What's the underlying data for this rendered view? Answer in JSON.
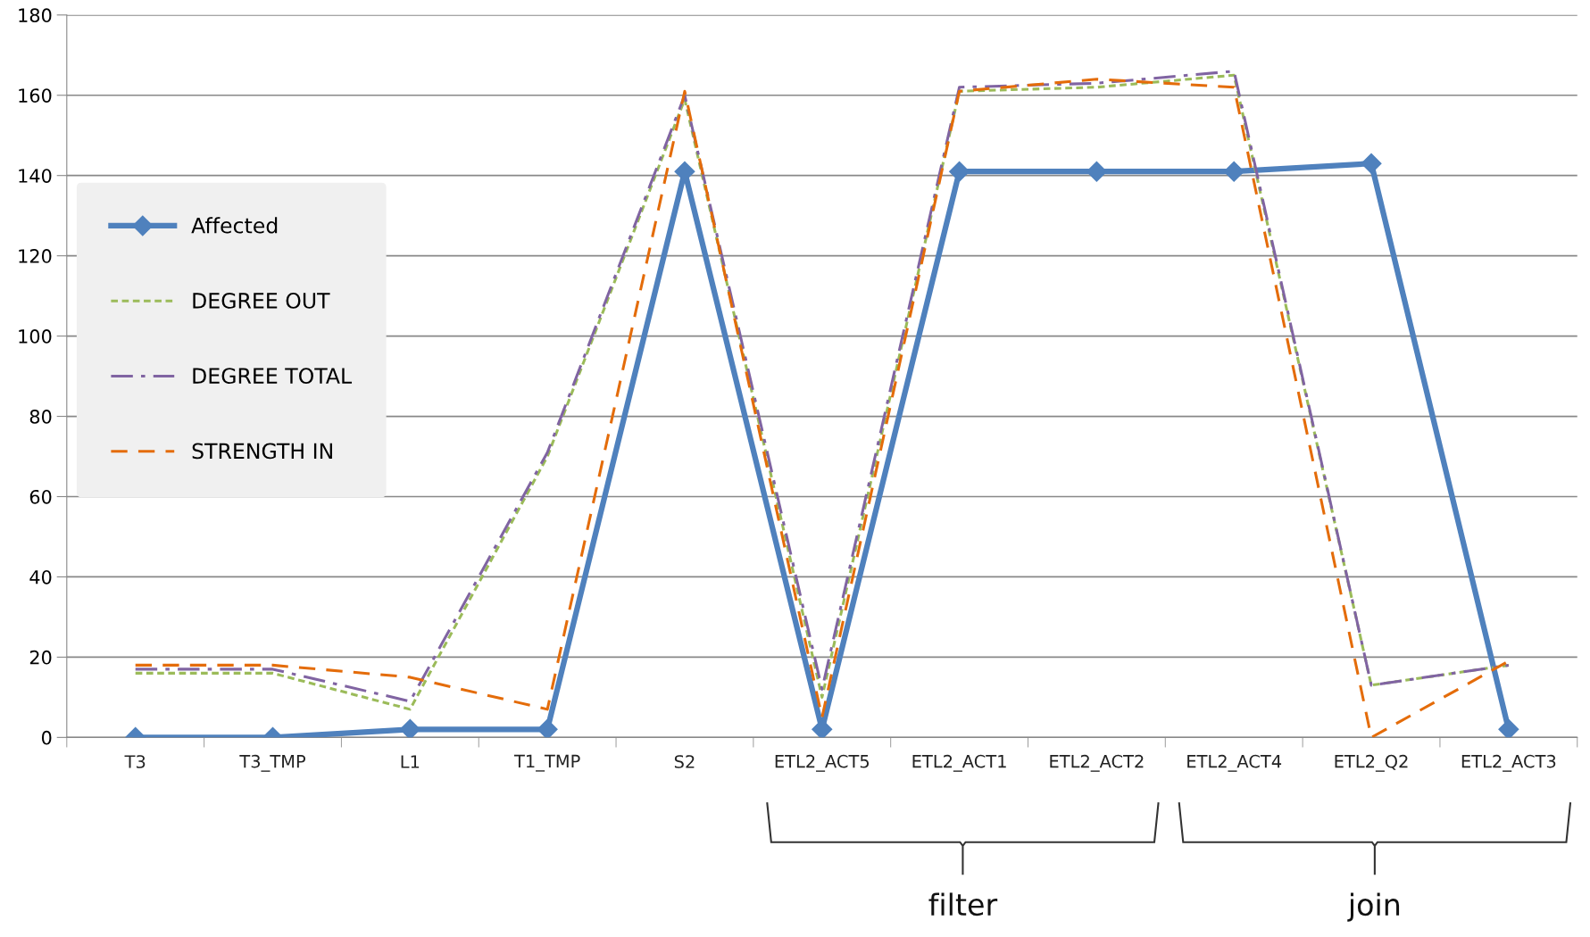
{
  "chart_data": {
    "type": "line",
    "categories": [
      "T3",
      "T3_TMP",
      "L1",
      "T1_TMP",
      "S2",
      "ETL2_ACT5",
      "ETL2_ACT1",
      "ETL2_ACT2",
      "ETL2_ACT4",
      "ETL2_Q2",
      "ETL2_ACT3"
    ],
    "series": [
      {
        "name": "Affected",
        "color": "#4f81bd",
        "marker": "diamond",
        "line_style": "solid",
        "values": [
          0,
          0,
          2,
          2,
          141,
          2,
          141,
          141,
          141,
          143,
          2
        ]
      },
      {
        "name": "DEGREE OUT",
        "color": "#9bbb59",
        "marker": "none",
        "line_style": "dotted",
        "values": [
          16,
          16,
          7,
          70,
          159,
          10,
          161,
          162,
          165,
          13,
          18
        ]
      },
      {
        "name": "DEGREE TOTAL",
        "color": "#8064a2",
        "marker": "none",
        "line_style": "dashdot",
        "values": [
          17,
          17,
          9,
          71,
          160,
          12,
          162,
          163,
          166,
          13,
          18
        ]
      },
      {
        "name": "STRENGTH IN",
        "color": "#e46c0a",
        "marker": "none",
        "line_style": "dashed",
        "values": [
          18,
          18,
          15,
          7,
          161,
          5,
          161,
          164,
          162,
          0,
          19
        ]
      }
    ],
    "ylim": [
      0,
      180
    ],
    "yticks": [
      0,
      20,
      40,
      60,
      80,
      100,
      120,
      140,
      160,
      180
    ],
    "grid": "y",
    "legend": "left",
    "annotations": [
      "filter",
      "join"
    ]
  }
}
